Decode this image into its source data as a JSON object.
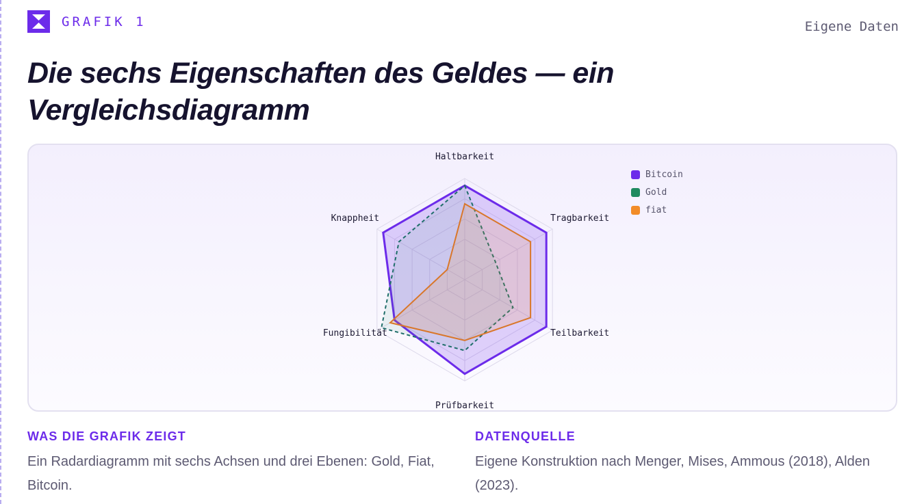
{
  "header": {
    "figure_label": "GRAFIK 1",
    "source_note": "Eigene Daten",
    "title": "Die sechs Eigenschaften des Geldes — ein Vergleichsdiagramm"
  },
  "chart_data": {
    "type": "radar",
    "axes": [
      "Haltbarkeit",
      "Tragbarkeit",
      "Teilbarkeit",
      "Prüfbarkeit",
      "Fungibilität",
      "Knappheit"
    ],
    "scale": {
      "min": 0,
      "max": 10,
      "levels": 5
    },
    "grid": true,
    "legend_position": "top-right",
    "series": [
      {
        "name": "Bitcoin",
        "color": "#6c2bea",
        "line_style": "solid",
        "values": [
          9.3,
          9.3,
          9.3,
          9.3,
          8.0,
          9.3
        ]
      },
      {
        "name": "Gold",
        "color": "#1f8a5f",
        "line_style": "dashed",
        "values": [
          9.3,
          3.5,
          5.5,
          7.0,
          9.5,
          7.5
        ]
      },
      {
        "name": "fiat",
        "color": "#f28c28",
        "line_style": "solid",
        "values": [
          7.5,
          7.5,
          7.5,
          6.0,
          8.5,
          2.0
        ]
      }
    ]
  },
  "footer": {
    "what_heading": "WAS DIE GRAFIK ZEIGT",
    "what_text": "Ein Radardiagramm mit sechs Achsen und drei Ebenen: Gold, Fiat, Bitcoin.",
    "source_heading": "DATENQUELLE",
    "source_text": "Eigene Konstruktion nach Menger, Mises, Ammous (2018), Alden (2023)."
  }
}
